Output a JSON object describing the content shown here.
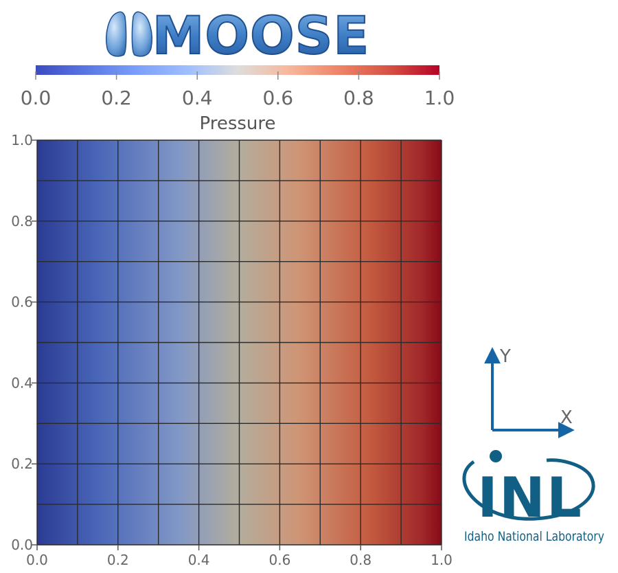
{
  "logo": {
    "text": "MOOSE",
    "colors": {
      "fill": "#4a86c8",
      "stroke": "#1f4f8f",
      "highlight": "#9cc4ee"
    }
  },
  "colorbar": {
    "title": "Pressure",
    "min": 0.0,
    "max": 1.0,
    "tick_labels": [
      "0.0",
      "0.2",
      "0.4",
      "0.6",
      "0.8",
      "1.0"
    ],
    "tick_values": [
      0.0,
      0.2,
      0.4,
      0.6,
      0.8,
      1.0
    ],
    "colormap": "Cool to Warm",
    "colors": {
      "low": "#3b4cc0",
      "mid": "#dddddd",
      "high": "#b40426"
    }
  },
  "chart_data": {
    "type": "heatmap",
    "title": "",
    "xlabel": "",
    "ylabel": "",
    "scalar_field": "Pressure",
    "field_definition": "Pressure = x",
    "xlim": [
      0.0,
      1.0
    ],
    "ylim": [
      0.0,
      1.0
    ],
    "mesh": {
      "nx": 10,
      "ny": 10,
      "grid": true
    },
    "x_tick_values": [
      0.0,
      0.2,
      0.4,
      0.6,
      0.8,
      1.0
    ],
    "y_tick_values": [
      0.0,
      0.2,
      0.4,
      0.6,
      0.8,
      1.0
    ],
    "x_tick_labels": [
      "0.0",
      "0.2",
      "0.4",
      "0.6",
      "0.8",
      "1.0"
    ],
    "y_tick_labels": [
      "0.0",
      "0.2",
      "0.4",
      "0.6",
      "0.8",
      "1.0"
    ],
    "color_range": [
      0.0,
      1.0
    ]
  },
  "axes_triad": {
    "x_label": "X",
    "y_label": "Y",
    "color": "#1565a6"
  },
  "inl_logo": {
    "text": "INL",
    "subtitle": "Idaho National Laboratory",
    "color": "#125f86"
  }
}
